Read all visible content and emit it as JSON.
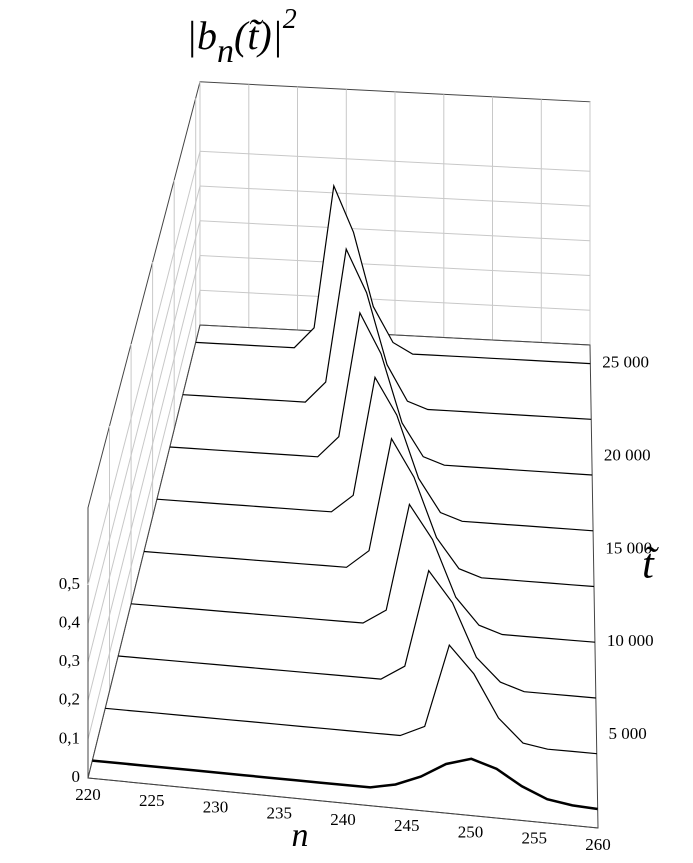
{
  "chart_data": {
    "type": "waterfall",
    "title_parts": [
      "|b",
      "n",
      "(t̃)|",
      "2"
    ],
    "x_label": "n",
    "y_label": "t̃",
    "x": [
      220,
      222,
      224,
      226,
      228,
      230,
      232,
      234,
      236,
      238,
      240,
      242,
      244,
      246,
      248,
      250,
      252,
      254,
      256,
      258,
      260
    ],
    "xlim": [
      220,
      260
    ],
    "xticks": [
      220,
      225,
      230,
      235,
      240,
      245,
      250,
      255,
      260
    ],
    "tlim": [
      0,
      26000
    ],
    "tticks": [
      {
        "value": 5000,
        "label": "5 000"
      },
      {
        "value": 10000,
        "label": "10 000"
      },
      {
        "value": 15000,
        "label": "15 000"
      },
      {
        "value": 20000,
        "label": "20 000"
      },
      {
        "value": 25000,
        "label": "25 000"
      }
    ],
    "zlim": [
      0,
      0.7
    ],
    "zticks": [
      0,
      {
        "value": 0.1,
        "label": "0,1"
      },
      {
        "value": 0.2,
        "label": "0,2"
      },
      {
        "value": 0.3,
        "label": "0,3"
      },
      {
        "value": 0.4,
        "label": "0,4"
      },
      {
        "value": 0.5,
        "label": "0,5"
      }
    ],
    "color": "#000000",
    "slices": [
      {
        "t": 25000,
        "values": [
          0,
          0,
          0,
          0,
          0,
          0,
          0.06,
          0.47,
          0.34,
          0.13,
          0.03,
          0,
          0,
          0,
          0,
          0,
          0,
          0,
          0,
          0,
          0
        ]
      },
      {
        "t": 22000,
        "values": [
          0,
          0,
          0,
          0,
          0,
          0,
          0,
          0.06,
          0.44,
          0.32,
          0.12,
          0.02,
          0,
          0,
          0,
          0,
          0,
          0,
          0,
          0,
          0
        ]
      },
      {
        "t": 19000,
        "values": [
          0,
          0,
          0,
          0,
          0,
          0,
          0,
          0,
          0.06,
          0.41,
          0.3,
          0.11,
          0.02,
          0,
          0,
          0,
          0,
          0,
          0,
          0,
          0
        ]
      },
      {
        "t": 16000,
        "values": [
          0,
          0,
          0,
          0,
          0,
          0,
          0,
          0,
          0,
          0.05,
          0.38,
          0.28,
          0.11,
          0.02,
          0,
          0,
          0,
          0,
          0,
          0,
          0
        ]
      },
      {
        "t": 13000,
        "values": [
          0,
          0,
          0,
          0,
          0,
          0,
          0,
          0,
          0,
          0,
          0.05,
          0.36,
          0.26,
          0.1,
          0.02,
          0,
          0,
          0,
          0,
          0,
          0
        ]
      },
      {
        "t": 10000,
        "values": [
          0,
          0,
          0,
          0,
          0,
          0,
          0,
          0,
          0,
          0,
          0,
          0.04,
          0.33,
          0.24,
          0.09,
          0.02,
          0,
          0,
          0,
          0,
          0
        ]
      },
      {
        "t": 7000,
        "values": [
          0,
          0,
          0,
          0,
          0,
          0,
          0,
          0,
          0,
          0,
          0,
          0,
          0.04,
          0.3,
          0.22,
          0.08,
          0.02,
          0,
          0,
          0,
          0
        ]
      },
      {
        "t": 4000,
        "values": [
          0,
          0,
          0,
          0,
          0,
          0,
          0,
          0,
          0,
          0,
          0,
          0,
          0,
          0.03,
          0.25,
          0.18,
          0.07,
          0.01,
          0,
          0,
          0
        ]
      },
      {
        "t": 1000,
        "values": [
          0,
          0,
          0,
          0,
          0,
          0,
          0,
          0,
          0,
          0,
          0,
          0,
          0.014,
          0.041,
          0.08,
          0.1,
          0.08,
          0.041,
          0.014,
          0.004,
          0.001
        ]
      }
    ]
  }
}
